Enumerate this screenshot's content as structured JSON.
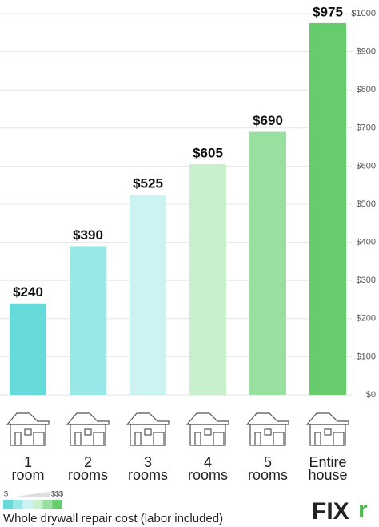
{
  "chart_data": {
    "type": "bar",
    "categories": [
      "1 room",
      "2 rooms",
      "3 rooms",
      "4 rooms",
      "5 rooms",
      "Entire house"
    ],
    "values": [
      240,
      390,
      525,
      605,
      690,
      975
    ],
    "value_labels": [
      "$240",
      "$390",
      "$525",
      "$605",
      "$690",
      "$975"
    ],
    "colors": [
      "#66d9d9",
      "#99e8e8",
      "#ccf2f2",
      "#c8f0cc",
      "#99df9f",
      "#66cc6e"
    ],
    "ylim": [
      0,
      1000
    ],
    "yticks": [
      {
        "value": 0,
        "label": "$0"
      },
      {
        "value": 100,
        "label": "$100"
      },
      {
        "value": 200,
        "label": "$200"
      },
      {
        "value": 300,
        "label": "$300"
      },
      {
        "value": 400,
        "label": "$400"
      },
      {
        "value": 500,
        "label": "$500"
      },
      {
        "value": 600,
        "label": "$600"
      },
      {
        "value": 700,
        "label": "$700"
      },
      {
        "value": 800,
        "label": "$800"
      },
      {
        "value": 900,
        "label": "$900"
      },
      {
        "value": 1000,
        "label": "$1000"
      }
    ],
    "grid": true,
    "legend": {
      "low": "$",
      "high": "$$$",
      "caption": "Whole drywall repair cost (labor included)"
    },
    "logo": {
      "main": "FIX",
      "accent": "r"
    }
  }
}
